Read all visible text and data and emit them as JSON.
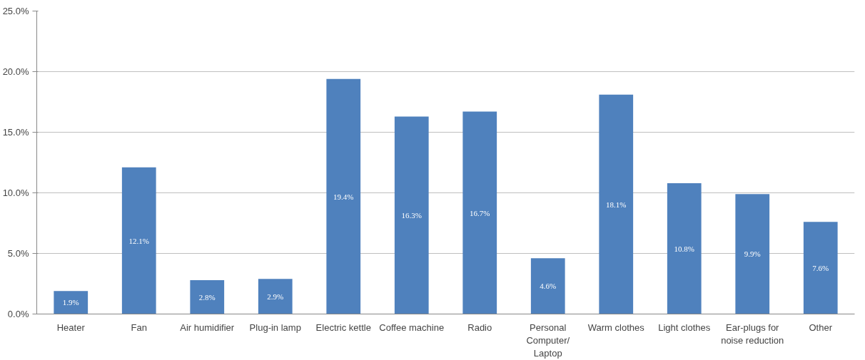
{
  "chart_data": {
    "type": "bar",
    "categories": [
      "Heater",
      "Fan",
      "Air humidifier",
      "Plug-in lamp",
      "Electric kettle",
      "Coffee machine",
      "Radio",
      "Personal Computer/ Laptop",
      "Warm clothes",
      "Light clothes",
      "Ear-plugs for noise reduction",
      "Other"
    ],
    "values": [
      1.9,
      12.1,
      2.8,
      2.9,
      19.4,
      16.3,
      16.7,
      4.6,
      18.1,
      10.8,
      9.9,
      7.6
    ],
    "value_labels": [
      "1.9%",
      "12.1%",
      "2.8%",
      "2.9%",
      "19.4%",
      "16.3%",
      "16.7%",
      "4.6%",
      "18.1%",
      "10.8%",
      "9.9%",
      "7.6%"
    ],
    "color": "#4f81bd",
    "ylim": [
      0,
      25
    ],
    "yticks": [
      {
        "value": 0,
        "label": "0.0%"
      },
      {
        "value": 5,
        "label": "5.0%"
      },
      {
        "value": 10,
        "label": "10.0%"
      },
      {
        "value": 15,
        "label": "15.0%"
      },
      {
        "value": 20,
        "label": "20.0%"
      },
      {
        "value": 25,
        "label": "25.0%"
      }
    ],
    "grid": "y"
  }
}
